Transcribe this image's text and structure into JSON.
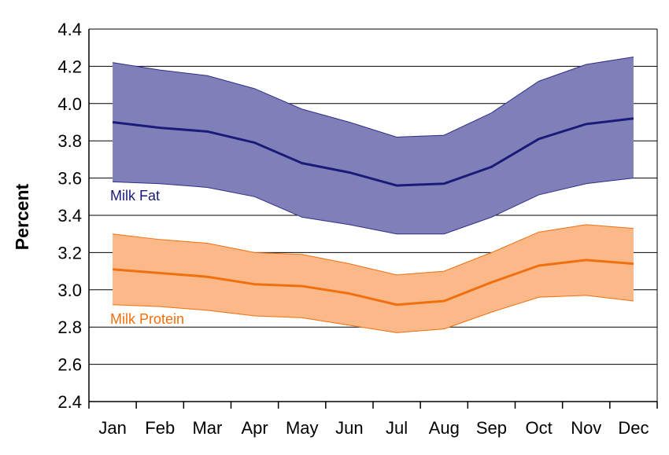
{
  "chart_data": {
    "type": "area",
    "title": "",
    "xlabel": "",
    "ylabel": "Percent",
    "ylim": [
      2.4,
      4.4
    ],
    "yticks": [
      "2.4",
      "2.6",
      "2.8",
      "3.0",
      "3.2",
      "3.4",
      "3.6",
      "3.8",
      "4.0",
      "4.2",
      "4.4"
    ],
    "grid": true,
    "categories": [
      "Jan",
      "Feb",
      "Mar",
      "Apr",
      "May",
      "Jun",
      "Jul",
      "Aug",
      "Sep",
      "Oct",
      "Nov",
      "Dec"
    ],
    "series": [
      {
        "name": "Milk Fat",
        "color": "#1a1a7a",
        "band_color": "#8080b8",
        "band_edge": "#2e2e8a",
        "mean": [
          3.9,
          3.87,
          3.85,
          3.79,
          3.68,
          3.63,
          3.56,
          3.57,
          3.66,
          3.81,
          3.89,
          3.92
        ],
        "upper": [
          4.22,
          4.18,
          4.15,
          4.08,
          3.97,
          3.9,
          3.82,
          3.83,
          3.95,
          4.12,
          4.21,
          4.25
        ],
        "lower": [
          3.58,
          3.57,
          3.55,
          3.5,
          3.39,
          3.35,
          3.3,
          3.3,
          3.39,
          3.51,
          3.57,
          3.6
        ]
      },
      {
        "name": "Milk Protein",
        "color": "#f07010",
        "band_color": "#fbb888",
        "band_edge": "#f07010",
        "mean": [
          3.11,
          3.09,
          3.07,
          3.03,
          3.02,
          2.98,
          2.92,
          2.94,
          3.04,
          3.13,
          3.16,
          3.14
        ],
        "upper": [
          3.3,
          3.27,
          3.25,
          3.2,
          3.19,
          3.14,
          3.08,
          3.1,
          3.2,
          3.31,
          3.35,
          3.33
        ],
        "lower": [
          2.92,
          2.91,
          2.89,
          2.86,
          2.85,
          2.81,
          2.77,
          2.79,
          2.88,
          2.96,
          2.97,
          2.94
        ]
      }
    ]
  }
}
